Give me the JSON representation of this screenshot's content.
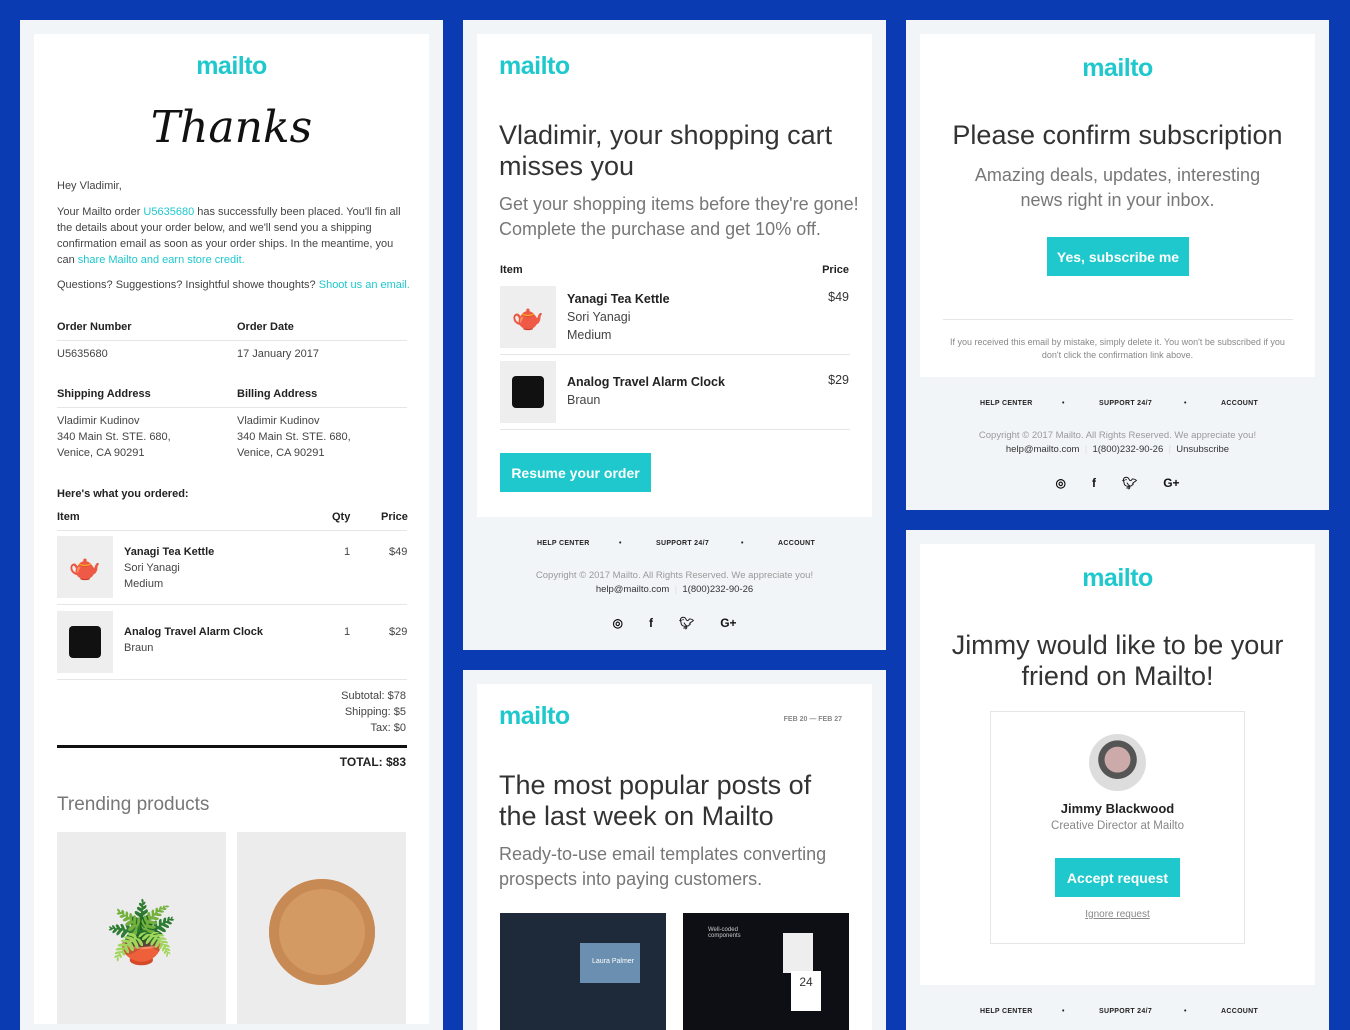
{
  "brand": {
    "logo": "mailto",
    "accent": "#1ec8cc",
    "background": "#0a3bb3"
  },
  "order": {
    "heading": "Thanks",
    "greeting": "Hey Vladimir,",
    "body_pre": "Your Mailto order ",
    "order_link": "U5635680",
    "body_post": " has successfully been placed. You'll fin all the details about your order below, and we'll send you a shipping confirmation email as soon as your order ships. In the meantime, you can ",
    "share_link": "share Mailto and earn store credit.",
    "questions": "Questions? Suggestions? Insightful showe thoughts? ",
    "email_link": "Shoot us an email.",
    "order_number_label": "Order Number",
    "order_number": "U5635680",
    "order_date_label": "Order Date",
    "order_date": "17 January 2017",
    "shipping_label": "Shipping Address",
    "billing_label": "Billing Address",
    "address": [
      "Vladimir Kudinov",
      "340 Main St. STE. 680,",
      "Venice, CA 90291"
    ],
    "ordered_label": "Here's what you ordered:",
    "col_item": "Item",
    "col_qty": "Qty",
    "col_price": "Price",
    "items": [
      {
        "name": "Yanagi Tea Kettle",
        "line2": "Sori Yanagi",
        "line3": "Medium",
        "qty": "1",
        "price": "$49",
        "icon": "kettle"
      },
      {
        "name": "Analog Travel Alarm Clock",
        "line2": "Braun",
        "line3": "",
        "qty": "1",
        "price": "$29",
        "icon": "clock"
      }
    ],
    "subtotal": "Subtotal: $78",
    "shipping": "Shipping: $5",
    "tax": "Tax: $0",
    "total": "TOTAL: $83",
    "trending": "Trending products"
  },
  "cart": {
    "title": "Vladimir, your shopping cart misses you",
    "subtitle": "Get your shopping items before they're gone! Complete the purchase and get 10% off.",
    "col_item": "Item",
    "col_price": "Price",
    "items": [
      {
        "name": "Yanagi Tea Kettle",
        "line2": "Sori Yanagi",
        "line3": "Medium",
        "price": "$49"
      },
      {
        "name": "Analog Travel Alarm Clock",
        "line2": "Braun",
        "price": "$29"
      }
    ],
    "button": "Resume your order"
  },
  "footer": {
    "nav": [
      "HELP CENTER",
      "SUPPORT 24/7",
      "ACCOUNT"
    ],
    "copyright": "Copyright © 2017 Mailto. All Rights Reserved. We appreciate you!",
    "email": "help@mailto.com",
    "phone": "1(800)232-90-26",
    "unsubscribe": "Unsubscribe",
    "social": [
      "instagram",
      "facebook",
      "twitter",
      "google-plus"
    ],
    "gplus": "G+"
  },
  "digest": {
    "dates": "FEB 20 — FEB 27",
    "title": "The most popular posts of the last week on Mailto",
    "subtitle": "Ready-to-use email templates converting prospects into paying customers.",
    "thumb1_text": "Laura Palmer",
    "thumb2_text": "Well-coded components",
    "thumb2_num": "24"
  },
  "subscribe": {
    "title": "Please confirm subscription",
    "subtitle": "Amazing deals, updates, interesting news right in your inbox.",
    "button": "Yes, subscribe me",
    "note": "If you received this email by mistake, simply delete it. You won't be subscribed if you don't click the confirmation link above."
  },
  "friend": {
    "title": "Jimmy would like to be your friend on Mailto!",
    "name": "Jimmy Blackwood",
    "role": "Creative Director at Mailto",
    "accept": "Accept request",
    "ignore": "Ignore request"
  }
}
